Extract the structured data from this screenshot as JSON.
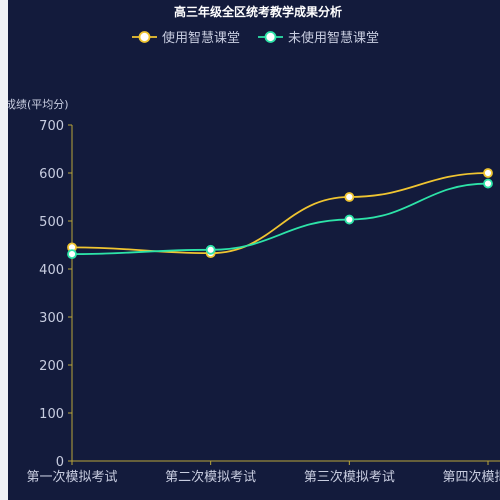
{
  "chart_data": {
    "type": "line",
    "title": "高三年级全区统考教学成果分析",
    "ylabel": "成绩(平均分)",
    "xlabel": "",
    "categories": [
      "第一次模拟考试",
      "第二次模拟考试",
      "第三次模拟考试",
      "第四次模拟考试"
    ],
    "ylim": [
      0,
      700
    ],
    "yticks": [
      0,
      100,
      200,
      300,
      400,
      500,
      600,
      700
    ],
    "grid": false,
    "legend_position": "top-center",
    "smooth": true,
    "series": [
      {
        "name": "使用智慧课堂",
        "values": [
          445,
          433,
          550,
          600
        ],
        "color": "#f0c531"
      },
      {
        "name": "未使用智慧课堂",
        "values": [
          431,
          440,
          503,
          578
        ],
        "color": "#2de3a8"
      }
    ]
  }
}
